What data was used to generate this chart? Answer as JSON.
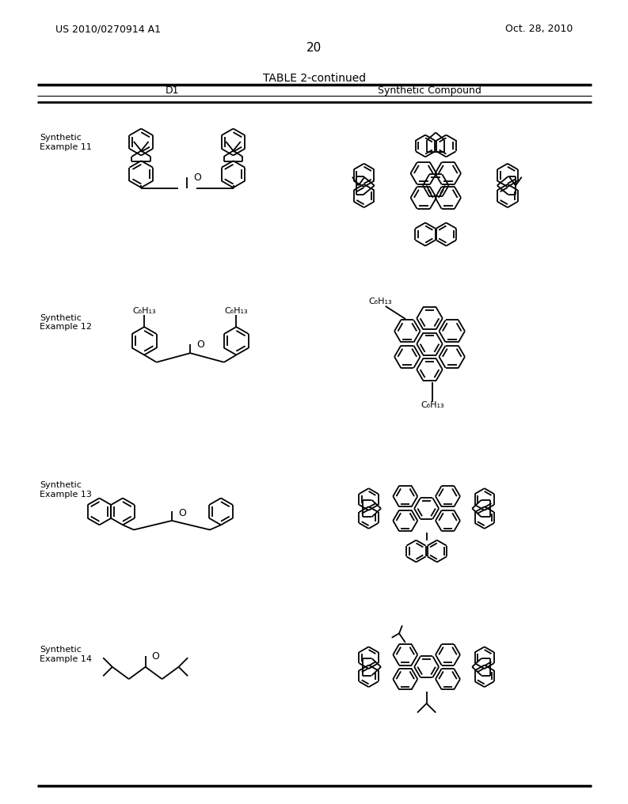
{
  "page_number": "20",
  "patent_number": "US 2010/0270914 A1",
  "patent_date": "Oct. 28, 2010",
  "table_title": "TABLE 2-continued",
  "col1_label": "D1",
  "col2_label": "Synthetic Compound",
  "bg_color": "#ffffff",
  "text_color": "#000000",
  "line_color": "#000000",
  "examples": [
    "Synthetic\nExample 11",
    "Synthetic\nExample 12",
    "Synthetic\nExample 13",
    "Synthetic\nExample 14"
  ]
}
